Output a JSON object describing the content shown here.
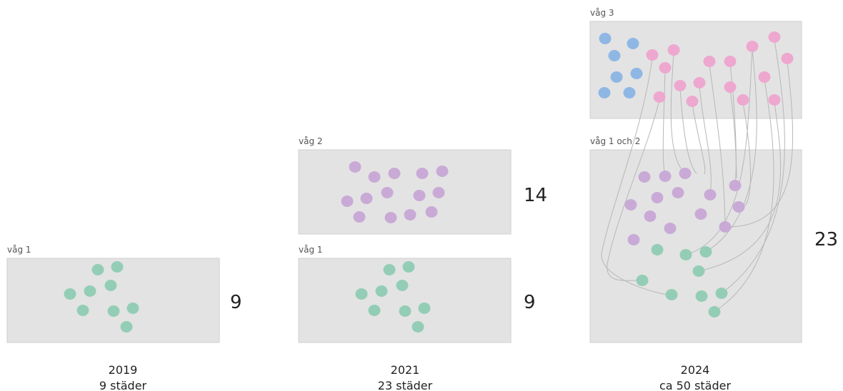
{
  "colors": {
    "wave1": "#94cdb6",
    "wave2": "#c9aad6",
    "wave3_blue": "#8fb7e4",
    "wave3_pink": "#eea8cf"
  },
  "col2019": {
    "panel_label": "våg 1",
    "count": "9",
    "year": "2019",
    "cities": "9 städer"
  },
  "col2021": {
    "top_label": "våg 2",
    "top_count": "14",
    "bottom_label": "våg 1",
    "bottom_count": "9",
    "year": "2021",
    "cities": "23 städer"
  },
  "col2024": {
    "top_label": "våg 3",
    "bottom_label": "våg 1 och 2",
    "bottom_count": "23",
    "year": "2024",
    "cities": "ca 50 städer"
  }
}
